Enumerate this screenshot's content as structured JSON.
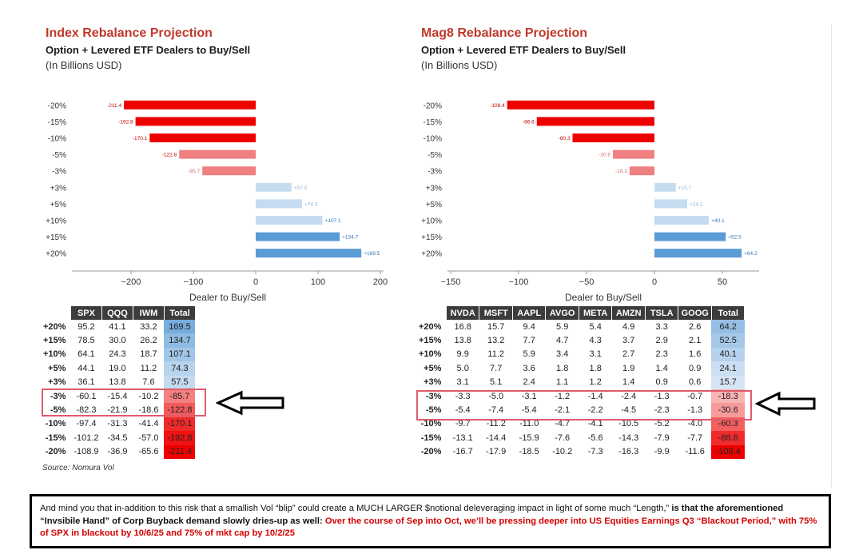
{
  "left": {
    "title": "Index Rebalance Projection",
    "subtitle": "Option + Levered ETF Dealers to Buy/Sell",
    "units": "(In Billions USD)",
    "source": "Source: Nomura Vol",
    "table": {
      "headers": [
        "SPX",
        "QQQ",
        "IWM",
        "Total"
      ],
      "rows": [
        {
          "label": "+20%",
          "values": [
            "95.2",
            "41.1",
            "33.2",
            "169.5"
          ]
        },
        {
          "label": "+15%",
          "values": [
            "78.5",
            "30.0",
            "26.2",
            "134.7"
          ]
        },
        {
          "label": "+10%",
          "values": [
            "64.1",
            "24.3",
            "18.7",
            "107.1"
          ]
        },
        {
          "label": "+5%",
          "values": [
            "44.1",
            "19.0",
            "11.2",
            "74.3"
          ]
        },
        {
          "label": "+3%",
          "values": [
            "36.1",
            "13.8",
            "7.6",
            "57.5"
          ]
        },
        {
          "label": "-3%",
          "values": [
            "-60.1",
            "-15.4",
            "-10.2",
            "-85.7"
          ]
        },
        {
          "label": "-5%",
          "values": [
            "-82.3",
            "-21.9",
            "-18.6",
            "-122.8"
          ]
        },
        {
          "label": "-10%",
          "values": [
            "-97.4",
            "-31.3",
            "-41.4",
            "-170.1"
          ]
        },
        {
          "label": "-15%",
          "values": [
            "-101.2",
            "-34.5",
            "-57.0",
            "-192.8"
          ]
        },
        {
          "label": "-20%",
          "values": [
            "-108.9",
            "-36.9",
            "-65.6",
            "-211.4"
          ]
        }
      ]
    }
  },
  "right": {
    "title": "Mag8 Rebalance Projection",
    "subtitle": "Option + Levered ETF Dealers to Buy/Sell",
    "units": "(In Billions USD)",
    "table": {
      "headers": [
        "NVDA",
        "MSFT",
        "AAPL",
        "AVGO",
        "META",
        "AMZN",
        "TSLA",
        "GOOG",
        "Total"
      ],
      "rows": [
        {
          "label": "+20%",
          "values": [
            "16.8",
            "15.7",
            "9.4",
            "5.9",
            "5.4",
            "4.9",
            "3.3",
            "2.6",
            "64.2"
          ]
        },
        {
          "label": "+15%",
          "values": [
            "13.8",
            "13.2",
            "7.7",
            "4.7",
            "4.3",
            "3.7",
            "2.9",
            "2.1",
            "52.5"
          ]
        },
        {
          "label": "+10%",
          "values": [
            "9.9",
            "11.2",
            "5.9",
            "3.4",
            "3.1",
            "2.7",
            "2.3",
            "1.6",
            "40.1"
          ]
        },
        {
          "label": "+5%",
          "values": [
            "5.0",
            "7.7",
            "3.6",
            "1.8",
            "1.8",
            "1.9",
            "1.4",
            "0.9",
            "24.1"
          ]
        },
        {
          "label": "+3%",
          "values": [
            "3.1",
            "5.1",
            "2.4",
            "1.1",
            "1.2",
            "1.4",
            "0.9",
            "0.6",
            "15.7"
          ]
        },
        {
          "label": "-3%",
          "values": [
            "-3.3",
            "-5.0",
            "-3.1",
            "-1.2",
            "-1.4",
            "-2.4",
            "-1.3",
            "-0.7",
            "-18.3"
          ]
        },
        {
          "label": "-5%",
          "values": [
            "-5.4",
            "-7.4",
            "-5.4",
            "-2.1",
            "-2.2",
            "-4.5",
            "-2.3",
            "-1.3",
            "-30.6"
          ]
        },
        {
          "label": "-10%",
          "values": [
            "-9.7",
            "-11.2",
            "-11.0",
            "-4.7",
            "-4.1",
            "-10.5",
            "-5.2",
            "-4.0",
            "-60.3"
          ]
        },
        {
          "label": "-15%",
          "values": [
            "-13.1",
            "-14.4",
            "-15.9",
            "-7.6",
            "-5.6",
            "-14.3",
            "-7.9",
            "-7.7",
            "-86.6"
          ]
        },
        {
          "label": "-20%",
          "values": [
            "-16.7",
            "-17.9",
            "-18.5",
            "-10.2",
            "-7.3",
            "-16.3",
            "-9.9",
            "-11.6",
            "-108.4"
          ]
        }
      ]
    }
  },
  "note": {
    "part1": "And mind you that in-addition to this risk that a smallish Vol “blip” could create a MUCH LARGER $notional deleveraging impact in light of some much “Length,” ",
    "part2": "is that the aforementioned “Invsibile Hand” of Corp Buyback demand slowly dries-up as well: ",
    "part3": "Over the course of Sep into Oct, we’ll be pressing deeper into US Equities Earnings Q3 “Blackout Period,” with 75% of SPX in blackout by 10/6/25 and 75% of mkt cap by 10/2/25"
  },
  "colors": {
    "neg_strong": "#ee0000",
    "neg_light": "#f08080",
    "pos_strong": "#5b9bd5",
    "pos_light": "#c5dcf0"
  },
  "chart_data": [
    {
      "type": "bar",
      "orientation": "horizontal",
      "title": "Index Rebalance Projection",
      "xlabel": "Dealer to Buy/Sell",
      "categories": [
        "-20%",
        "-15%",
        "-10%",
        "-5%",
        "-3%",
        "+3%",
        "+5%",
        "+10%",
        "+15%",
        "+20%"
      ],
      "values": [
        -211.4,
        -192.8,
        -170.1,
        -122.8,
        -85.7,
        57.5,
        74.3,
        107.1,
        134.7,
        169.5
      ],
      "labels": [
        "-211.4",
        "-192.8",
        "-170.1",
        "-122.8",
        "-85.7",
        "+57.5",
        "+74.3",
        "+107.1",
        "+134.7",
        "+169.5"
      ],
      "xlim": [
        -300,
        200
      ],
      "ticks": [
        -200,
        -100,
        0,
        100,
        200
      ],
      "tick_labels": [
        "−200",
        "−100",
        "0",
        "100",
        "200"
      ]
    },
    {
      "type": "bar",
      "orientation": "horizontal",
      "title": "Mag8 Rebalance Projection",
      "xlabel": "Dealer to Buy/Sell",
      "categories": [
        "-20%",
        "-15%",
        "-10%",
        "-5%",
        "-3%",
        "+3%",
        "+5%",
        "+10%",
        "+15%",
        "+20%"
      ],
      "values": [
        -108.4,
        -86.6,
        -60.3,
        -30.6,
        -18.3,
        15.7,
        24.1,
        40.1,
        52.5,
        64.2
      ],
      "labels": [
        "-108.4",
        "-86.6",
        "-60.3",
        "-30.6",
        "-18.3",
        "+15.7",
        "+24.1",
        "+40.1",
        "+52.5",
        "+64.2"
      ],
      "xlim": [
        -155,
        75
      ],
      "ticks": [
        -150,
        -100,
        -50,
        0,
        50
      ],
      "tick_labels": [
        "−150",
        "−100",
        "−50",
        "0",
        "50"
      ]
    }
  ]
}
